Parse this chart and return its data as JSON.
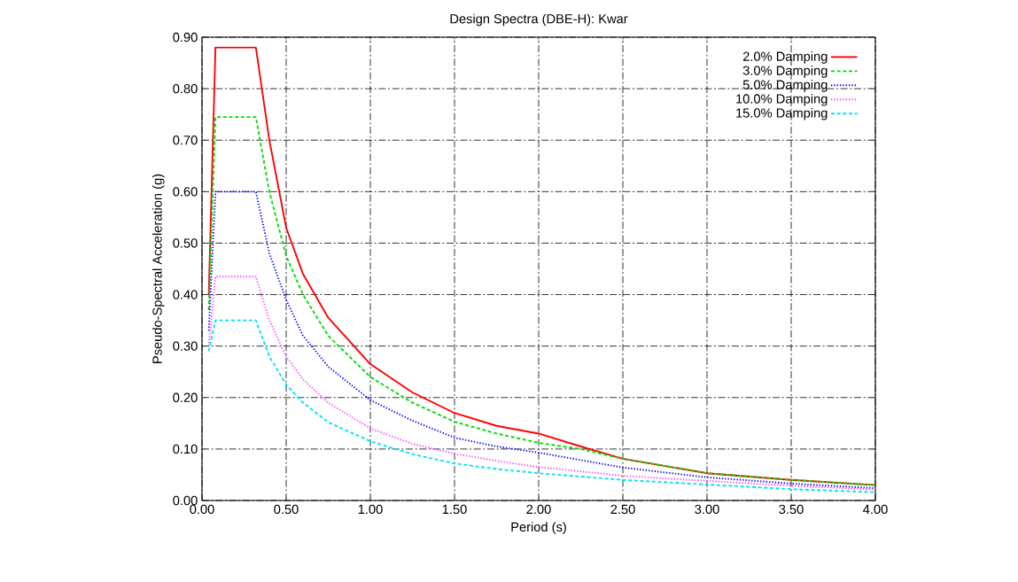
{
  "chart_data": {
    "type": "line",
    "title": "Design Spectra (DBE-H): Kwar",
    "xlabel": "Period (s)",
    "ylabel": "Pseudo-Spectral Acceleration (g)",
    "xlim": [
      0,
      4
    ],
    "ylim": [
      0,
      0.9
    ],
    "xticks": [
      {
        "value": 0,
        "label": "0.00"
      },
      {
        "value": 0.5,
        "label": "0.50"
      },
      {
        "value": 1,
        "label": "1.00"
      },
      {
        "value": 1.5,
        "label": "1.50"
      },
      {
        "value": 2,
        "label": "2.00"
      },
      {
        "value": 2.5,
        "label": "2.50"
      },
      {
        "value": 3,
        "label": "3.00"
      },
      {
        "value": 3.5,
        "label": "3.50"
      },
      {
        "value": 4,
        "label": "4.00"
      }
    ],
    "yticks": [
      {
        "value": 0,
        "label": "0.00"
      },
      {
        "value": 0.1,
        "label": "0.10"
      },
      {
        "value": 0.2,
        "label": "0.20"
      },
      {
        "value": 0.3,
        "label": "0.30"
      },
      {
        "value": 0.4,
        "label": "0.40"
      },
      {
        "value": 0.5,
        "label": "0.50"
      },
      {
        "value": 0.6,
        "label": "0.60"
      },
      {
        "value": 0.7,
        "label": "0.70"
      },
      {
        "value": 0.8,
        "label": "0.80"
      },
      {
        "value": 0.9,
        "label": "0.90"
      }
    ],
    "grid": true,
    "legend": "top right",
    "marker": "none",
    "series": [
      {
        "name": "2.0% Damping",
        "color": "#ff0000",
        "line_style": "solid",
        "x": [
          0.04,
          0.08,
          0.32,
          0.4,
          0.5,
          0.6,
          0.75,
          1.0,
          1.25,
          1.5,
          1.75,
          2.0,
          2.25,
          2.5,
          3.0,
          3.5,
          4.0
        ],
        "values": [
          0.4,
          0.88,
          0.88,
          0.7,
          0.53,
          0.44,
          0.355,
          0.265,
          0.21,
          0.17,
          0.145,
          0.13,
          0.105,
          0.081,
          0.053,
          0.04,
          0.03
        ]
      },
      {
        "name": "3.0% Damping",
        "color": "#00dd00",
        "line_style": "dashed",
        "x": [
          0.04,
          0.08,
          0.32,
          0.4,
          0.5,
          0.6,
          0.75,
          1.0,
          1.25,
          1.5,
          1.75,
          2.0,
          2.25,
          2.5,
          3.0,
          3.5,
          4.0
        ],
        "values": [
          0.37,
          0.745,
          0.745,
          0.6,
          0.475,
          0.4,
          0.32,
          0.24,
          0.19,
          0.153,
          0.13,
          0.112,
          0.1,
          0.081,
          0.053,
          0.04,
          0.03
        ]
      },
      {
        "name": "5.0% Damping",
        "color": "#0000ff",
        "line_style": "dotted",
        "x": [
          0.04,
          0.08,
          0.32,
          0.4,
          0.5,
          0.6,
          0.75,
          1.0,
          1.25,
          1.5,
          1.75,
          2.0,
          2.5,
          3.0,
          3.5,
          4.0
        ],
        "values": [
          0.33,
          0.6,
          0.6,
          0.48,
          0.39,
          0.32,
          0.26,
          0.195,
          0.155,
          0.122,
          0.105,
          0.093,
          0.064,
          0.045,
          0.033,
          0.024
        ]
      },
      {
        "name": "10.0% Damping",
        "color": "#ff44ff",
        "line_style": "dotted",
        "x": [
          0.04,
          0.08,
          0.32,
          0.4,
          0.5,
          0.6,
          0.75,
          1.0,
          1.25,
          1.5,
          1.75,
          2.0,
          2.5,
          3.0,
          3.5,
          4.0
        ],
        "values": [
          0.3,
          0.435,
          0.435,
          0.35,
          0.28,
          0.235,
          0.19,
          0.14,
          0.11,
          0.091,
          0.077,
          0.065,
          0.048,
          0.038,
          0.029,
          0.021
        ]
      },
      {
        "name": "15.0% Damping",
        "color": "#00e5ee",
        "line_style": "dashed",
        "x": [
          0.04,
          0.08,
          0.32,
          0.4,
          0.5,
          0.6,
          0.75,
          1.0,
          1.25,
          1.5,
          1.75,
          2.0,
          2.5,
          3.0,
          3.5,
          4.0
        ],
        "values": [
          0.29,
          0.35,
          0.35,
          0.28,
          0.225,
          0.19,
          0.152,
          0.115,
          0.09,
          0.072,
          0.061,
          0.053,
          0.04,
          0.031,
          0.022,
          0.016
        ]
      }
    ]
  }
}
